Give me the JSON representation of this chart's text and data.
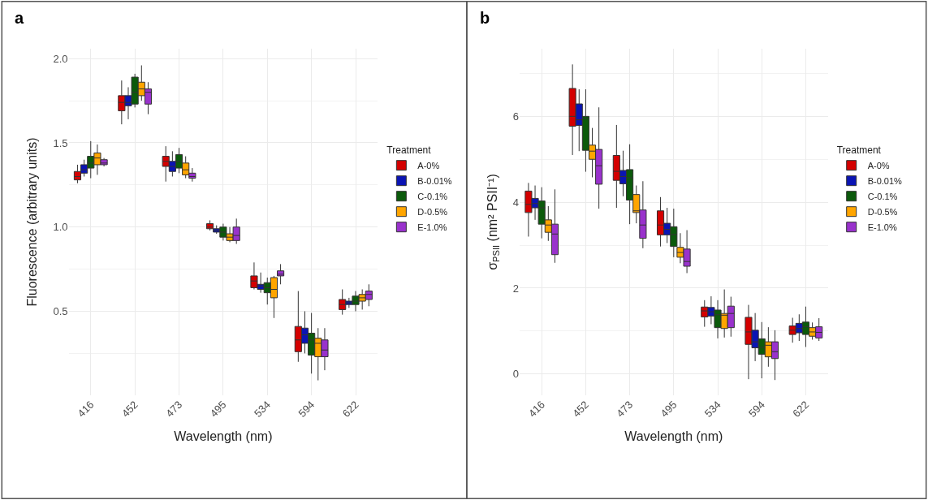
{
  "chart_data": [
    {
      "type": "box",
      "title": "a",
      "xlabel": "Wavelength (nm)",
      "ylabel": "Fluorescence (arbitrary units)",
      "legend_title": "Treatment",
      "legend": "right",
      "grid": true,
      "categories": [
        "416",
        "452",
        "473",
        "495",
        "534",
        "594",
        "622"
      ],
      "ylim": [
        0.0,
        2.06
      ],
      "yticks": [
        {
          "value": 0.5,
          "label": "0.5"
        },
        {
          "value": 1.0,
          "label": "1.0"
        },
        {
          "value": 1.5,
          "label": "1.5"
        },
        {
          "value": 2.0,
          "label": "2.0"
        }
      ],
      "series": [
        {
          "name": "A-0%",
          "color": "#d40000",
          "boxes": [
            {
              "low": 1.26,
              "q1": 1.28,
              "median": 1.3,
              "q3": 1.33,
              "high": 1.37
            },
            {
              "low": 1.61,
              "q1": 1.69,
              "median": 1.74,
              "q3": 1.78,
              "high": 1.87
            },
            {
              "low": 1.27,
              "q1": 1.36,
              "median": 1.39,
              "q3": 1.42,
              "high": 1.48
            },
            {
              "low": 0.98,
              "q1": 0.99,
              "median": 1.0,
              "q3": 1.02,
              "high": 1.04
            },
            {
              "low": 0.63,
              "q1": 0.64,
              "median": 0.68,
              "q3": 0.71,
              "high": 0.79
            },
            {
              "low": 0.2,
              "q1": 0.26,
              "median": 0.33,
              "q3": 0.41,
              "high": 0.62
            },
            {
              "low": 0.48,
              "q1": 0.51,
              "median": 0.54,
              "q3": 0.57,
              "high": 0.63
            }
          ]
        },
        {
          "name": "B-0.01%",
          "color": "#0a14b4",
          "boxes": [
            {
              "low": 1.3,
              "q1": 1.32,
              "median": 1.34,
              "q3": 1.37,
              "high": 1.4
            },
            {
              "low": 1.64,
              "q1": 1.72,
              "median": 1.74,
              "q3": 1.78,
              "high": 1.83
            },
            {
              "low": 1.3,
              "q1": 1.33,
              "median": 1.36,
              "q3": 1.39,
              "high": 1.45
            },
            {
              "low": 0.96,
              "q1": 0.97,
              "median": 0.98,
              "q3": 0.99,
              "high": 1.01
            },
            {
              "low": 0.61,
              "q1": 0.63,
              "median": 0.65,
              "q3": 0.66,
              "high": 0.73
            },
            {
              "low": 0.25,
              "q1": 0.31,
              "median": 0.36,
              "q3": 0.4,
              "high": 0.5
            },
            {
              "low": 0.52,
              "q1": 0.54,
              "median": 0.55,
              "q3": 0.56,
              "high": 0.58
            }
          ]
        },
        {
          "name": "C-0.1%",
          "color": "#0b5a0b",
          "boxes": [
            {
              "low": 1.29,
              "q1": 1.35,
              "median": 1.38,
              "q3": 1.42,
              "high": 1.51
            },
            {
              "low": 1.71,
              "q1": 1.73,
              "median": 1.8,
              "q3": 1.89,
              "high": 1.91
            },
            {
              "low": 1.32,
              "q1": 1.35,
              "median": 1.39,
              "q3": 1.43,
              "high": 1.47
            },
            {
              "low": 0.92,
              "q1": 0.94,
              "median": 0.97,
              "q3": 1.0,
              "high": 1.02
            },
            {
              "low": 0.54,
              "q1": 0.61,
              "median": 0.64,
              "q3": 0.67,
              "high": 0.7
            },
            {
              "low": 0.13,
              "q1": 0.24,
              "median": 0.33,
              "q3": 0.37,
              "high": 0.49
            },
            {
              "low": 0.5,
              "q1": 0.54,
              "median": 0.56,
              "q3": 0.59,
              "high": 0.62
            }
          ]
        },
        {
          "name": "D-0.5%",
          "color": "#ffa500",
          "boxes": [
            {
              "low": 1.31,
              "q1": 1.37,
              "median": 1.41,
              "q3": 1.44,
              "high": 1.49
            },
            {
              "low": 1.75,
              "q1": 1.78,
              "median": 1.82,
              "q3": 1.86,
              "high": 1.96
            },
            {
              "low": 1.29,
              "q1": 1.31,
              "median": 1.34,
              "q3": 1.38,
              "high": 1.42
            },
            {
              "low": 0.91,
              "q1": 0.92,
              "median": 0.94,
              "q3": 0.96,
              "high": 1.0
            },
            {
              "low": 0.46,
              "q1": 0.58,
              "median": 0.63,
              "q3": 0.7,
              "high": 0.71
            },
            {
              "low": 0.09,
              "q1": 0.23,
              "median": 0.31,
              "q3": 0.34,
              "high": 0.4
            },
            {
              "low": 0.51,
              "q1": 0.56,
              "median": 0.58,
              "q3": 0.6,
              "high": 0.63
            }
          ]
        },
        {
          "name": "E-1.0%",
          "color": "#9932cc",
          "boxes": [
            {
              "low": 1.36,
              "q1": 1.37,
              "median": 1.38,
              "q3": 1.4,
              "high": 1.41
            },
            {
              "low": 1.67,
              "q1": 1.73,
              "median": 1.8,
              "q3": 1.82,
              "high": 1.86
            },
            {
              "low": 1.27,
              "q1": 1.29,
              "median": 1.3,
              "q3": 1.32,
              "high": 1.35
            },
            {
              "low": 0.9,
              "q1": 0.92,
              "median": 0.95,
              "q3": 1.0,
              "high": 1.05
            },
            {
              "low": 0.66,
              "q1": 0.71,
              "median": 0.72,
              "q3": 0.74,
              "high": 0.78
            },
            {
              "low": 0.15,
              "q1": 0.23,
              "median": 0.27,
              "q3": 0.33,
              "high": 0.4
            },
            {
              "low": 0.53,
              "q1": 0.57,
              "median": 0.6,
              "q3": 0.62,
              "high": 0.66
            }
          ]
        }
      ]
    },
    {
      "type": "box",
      "title": "b",
      "xlabel": "Wavelength (nm)",
      "ylabel": "σ$_{PSII}$ (nm² PSII⁻¹)",
      "legend_title": "Treatment",
      "legend": "right",
      "grid": true,
      "categories": [
        "416",
        "452",
        "473",
        "495",
        "534",
        "594",
        "622"
      ],
      "ylim": [
        -0.5,
        7.58
      ],
      "yticks": [
        0,
        2,
        4,
        6
      ],
      "series": [
        {
          "name": "A-0%",
          "color": "#d40000",
          "boxes": [
            {
              "low": 3.2,
              "q1": 3.76,
              "median": 3.95,
              "q3": 4.26,
              "high": 4.45
            },
            {
              "low": 5.1,
              "q1": 5.77,
              "median": 6.0,
              "q3": 6.65,
              "high": 7.21
            },
            {
              "low": 3.87,
              "q1": 4.51,
              "median": 4.72,
              "q3": 5.09,
              "high": 5.8
            },
            {
              "low": 2.97,
              "q1": 3.24,
              "median": 3.47,
              "q3": 3.8,
              "high": 4.12
            },
            {
              "low": 1.1,
              "q1": 1.33,
              "median": 1.47,
              "q3": 1.56,
              "high": 1.72
            },
            {
              "low": -0.12,
              "q1": 0.69,
              "median": 0.98,
              "q3": 1.32,
              "high": 1.61
            },
            {
              "low": 0.73,
              "q1": 0.92,
              "median": 1.02,
              "q3": 1.12,
              "high": 1.31
            }
          ]
        },
        {
          "name": "B-0.01%",
          "color": "#0a14b4",
          "boxes": [
            {
              "low": 3.59,
              "q1": 3.87,
              "median": 3.97,
              "q3": 4.09,
              "high": 4.39
            },
            {
              "low": 5.19,
              "q1": 5.79,
              "median": 5.92,
              "q3": 6.29,
              "high": 6.63
            },
            {
              "low": 4.14,
              "q1": 4.43,
              "median": 4.6,
              "q3": 4.74,
              "high": 5.2
            },
            {
              "low": 3.05,
              "q1": 3.24,
              "median": 3.37,
              "q3": 3.51,
              "high": 3.87
            },
            {
              "low": 1.16,
              "q1": 1.35,
              "median": 1.45,
              "q3": 1.55,
              "high": 1.81
            },
            {
              "low": 0.3,
              "q1": 0.61,
              "median": 0.75,
              "q3": 1.02,
              "high": 1.42
            },
            {
              "low": 0.77,
              "q1": 0.96,
              "median": 1.06,
              "q3": 1.18,
              "high": 1.39
            }
          ]
        },
        {
          "name": "C-0.1%",
          "color": "#0b5a0b",
          "boxes": [
            {
              "low": 3.16,
              "q1": 3.49,
              "median": 3.87,
              "q3": 4.03,
              "high": 4.35
            },
            {
              "low": 4.71,
              "q1": 5.21,
              "median": 5.95,
              "q3": 6.0,
              "high": 6.63
            },
            {
              "low": 3.49,
              "q1": 4.05,
              "median": 4.57,
              "q3": 4.76,
              "high": 5.35
            },
            {
              "low": 2.72,
              "q1": 2.97,
              "median": 3.25,
              "q3": 3.43,
              "high": 3.85
            },
            {
              "low": 0.83,
              "q1": 1.08,
              "median": 1.38,
              "q3": 1.49,
              "high": 1.72
            },
            {
              "low": -0.1,
              "q1": 0.46,
              "median": 0.62,
              "q3": 0.82,
              "high": 1.21
            },
            {
              "low": 0.63,
              "q1": 0.92,
              "median": 1.1,
              "q3": 1.21,
              "high": 1.57
            }
          ]
        },
        {
          "name": "D-0.5%",
          "color": "#ffa500",
          "boxes": [
            {
              "low": 3.1,
              "q1": 3.3,
              "median": 3.47,
              "q3": 3.59,
              "high": 3.91
            },
            {
              "low": 4.58,
              "q1": 5.0,
              "median": 5.19,
              "q3": 5.33,
              "high": 5.73
            },
            {
              "low": 3.51,
              "q1": 3.76,
              "median": 3.8,
              "q3": 4.18,
              "high": 4.39
            },
            {
              "low": 2.58,
              "q1": 2.72,
              "median": 2.83,
              "q3": 2.95,
              "high": 3.28
            },
            {
              "low": 0.85,
              "q1": 1.06,
              "median": 1.37,
              "q3": 1.41,
              "high": 1.97
            },
            {
              "low": 0.17,
              "q1": 0.4,
              "median": 0.67,
              "q3": 0.75,
              "high": 1.09
            },
            {
              "low": 0.8,
              "q1": 0.88,
              "median": 0.98,
              "q3": 1.08,
              "high": 1.2
            }
          ]
        },
        {
          "name": "E-1.0%",
          "color": "#9932cc",
          "boxes": [
            {
              "low": 2.59,
              "q1": 2.78,
              "median": 3.26,
              "q3": 3.49,
              "high": 4.3
            },
            {
              "low": 3.85,
              "q1": 4.42,
              "median": 4.85,
              "q3": 5.23,
              "high": 6.21
            },
            {
              "low": 2.93,
              "q1": 3.16,
              "median": 3.47,
              "q3": 3.82,
              "high": 4.49
            },
            {
              "low": 2.35,
              "q1": 2.51,
              "median": 2.62,
              "q3": 2.91,
              "high": 3.35
            },
            {
              "low": 0.87,
              "q1": 1.08,
              "median": 1.41,
              "q3": 1.58,
              "high": 1.8
            },
            {
              "low": -0.14,
              "q1": 0.36,
              "median": 0.52,
              "q3": 0.75,
              "high": 1.02
            },
            {
              "low": 0.77,
              "q1": 0.84,
              "median": 0.97,
              "q3": 1.1,
              "high": 1.3
            }
          ]
        }
      ]
    }
  ]
}
